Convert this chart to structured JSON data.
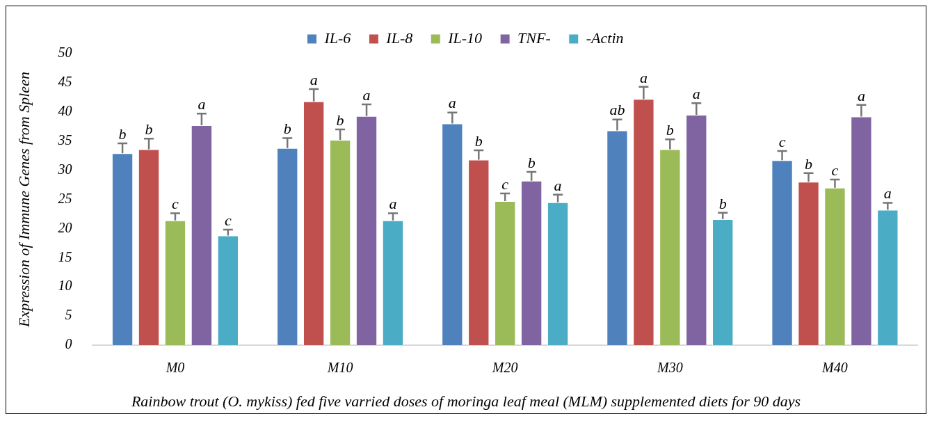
{
  "chart_data": {
    "type": "bar",
    "categories": [
      "M0",
      "M10",
      "M20",
      "M30",
      "M40"
    ],
    "ylabel": "Expression of Immune Genes from Spleen",
    "xlabel": "Rainbow trout (O. mykiss) fed five varried doses of moringa leaf meal (MLM) supplemented diets for 90 days",
    "ylim": [
      0,
      50
    ],
    "yticks": [
      0,
      5,
      10,
      15,
      20,
      25,
      30,
      35,
      40,
      45,
      50
    ],
    "grid": false,
    "legend": "top",
    "series": [
      {
        "name": "IL-6",
        "color": "#4f81bd",
        "values": [
          32.9,
          33.8,
          38.0,
          36.8,
          31.7
        ],
        "errors": [
          1.7,
          1.7,
          1.9,
          1.9,
          1.6
        ],
        "value_labels": [
          "b",
          "b",
          "a",
          "ab",
          "c"
        ]
      },
      {
        "name": "IL-8",
        "color": "#c0504d",
        "values": [
          33.6,
          41.8,
          31.8,
          42.2,
          28.0
        ],
        "errors": [
          1.8,
          2.1,
          1.6,
          2.1,
          1.5
        ],
        "value_labels": [
          "b",
          "a",
          "b",
          "a",
          "b"
        ]
      },
      {
        "name": "IL-10",
        "color": "#9bbb59",
        "values": [
          21.4,
          35.2,
          24.7,
          33.6,
          27.0
        ],
        "errors": [
          1.2,
          1.8,
          1.3,
          1.7,
          1.4
        ],
        "value_labels": [
          "c",
          "b",
          "c",
          "b",
          "c"
        ]
      },
      {
        "name": "TNF-",
        "color": "#8064a2",
        "values": [
          37.7,
          39.3,
          28.2,
          39.5,
          39.2
        ],
        "errors": [
          2.0,
          2.0,
          1.5,
          2.0,
          2.0
        ],
        "value_labels": [
          "a",
          "a",
          "b",
          "a",
          "a"
        ]
      },
      {
        "name": "-Actin",
        "color": "#4bacc6",
        "values": [
          18.8,
          21.4,
          24.5,
          21.6,
          23.2
        ],
        "errors": [
          1.0,
          1.2,
          1.3,
          1.1,
          1.2
        ],
        "value_labels": [
          "c",
          "a",
          "a",
          "b",
          "a"
        ]
      }
    ]
  }
}
